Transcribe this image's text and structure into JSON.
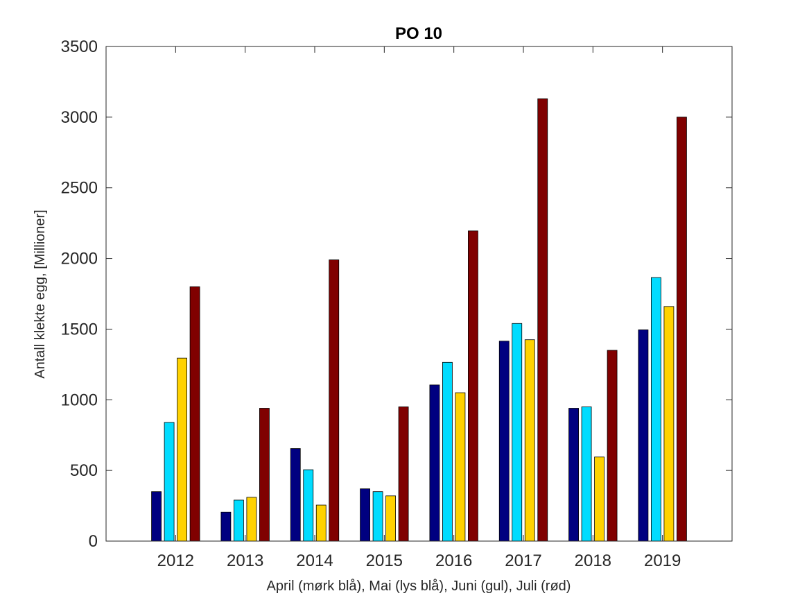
{
  "chart_data": {
    "type": "bar",
    "title": "PO 10",
    "xlabel": "April (mørk blå), Mai (lys blå), Juni (gul), Juli (rød)",
    "ylabel": "Antall klekte egg, [Millioner]",
    "ylim": [
      0,
      3500
    ],
    "yticks": [
      0,
      500,
      1000,
      1500,
      2000,
      2500,
      3000,
      3500
    ],
    "categories": [
      "2012",
      "2013",
      "2014",
      "2015",
      "2016",
      "2017",
      "2018",
      "2019"
    ],
    "grid": false,
    "series": [
      {
        "values": [
          350,
          205,
          655,
          370,
          1105,
          1415,
          940,
          1495
        ],
        "color": "#000080"
      },
      {
        "values": [
          840,
          290,
          505,
          350,
          1265,
          1540,
          950,
          1865
        ],
        "color": "#00dcff"
      },
      {
        "values": [
          1295,
          310,
          255,
          320,
          1050,
          1425,
          595,
          1660
        ],
        "color": "#ffd200"
      },
      {
        "values": [
          1800,
          940,
          1990,
          950,
          2195,
          3130,
          1350,
          3000
        ],
        "color": "#800000"
      }
    ]
  }
}
